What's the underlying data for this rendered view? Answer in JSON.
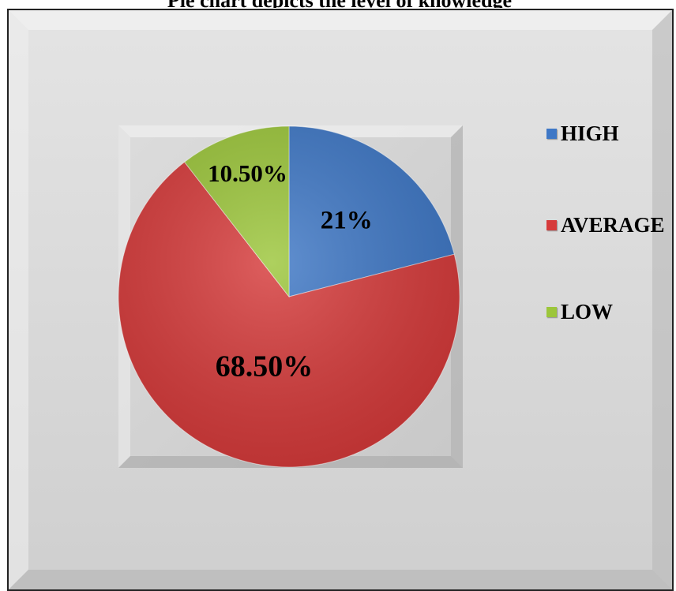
{
  "title": "Pie chart depicts the level of knowledge",
  "colors": {
    "frame_bg": "#d9d9d9",
    "plot_bg": "#d4d4d4",
    "high": "#3f78c6",
    "average": "#d63b3b",
    "low": "#9cc63b"
  },
  "chart_data": {
    "type": "pie",
    "title": "",
    "legend_placement": "right",
    "slices": [
      {
        "label": "HIGH",
        "value": 21,
        "display": "21%",
        "color": "#3f78c6"
      },
      {
        "label": "AVERAGE",
        "value": 68.5,
        "display": "68.50%",
        "color": "#d63b3b"
      },
      {
        "label": "LOW",
        "value": 10.5,
        "display": "10.50%",
        "color": "#9cc63b"
      }
    ],
    "start_angle_deg": 0,
    "direction": "clockwise"
  }
}
